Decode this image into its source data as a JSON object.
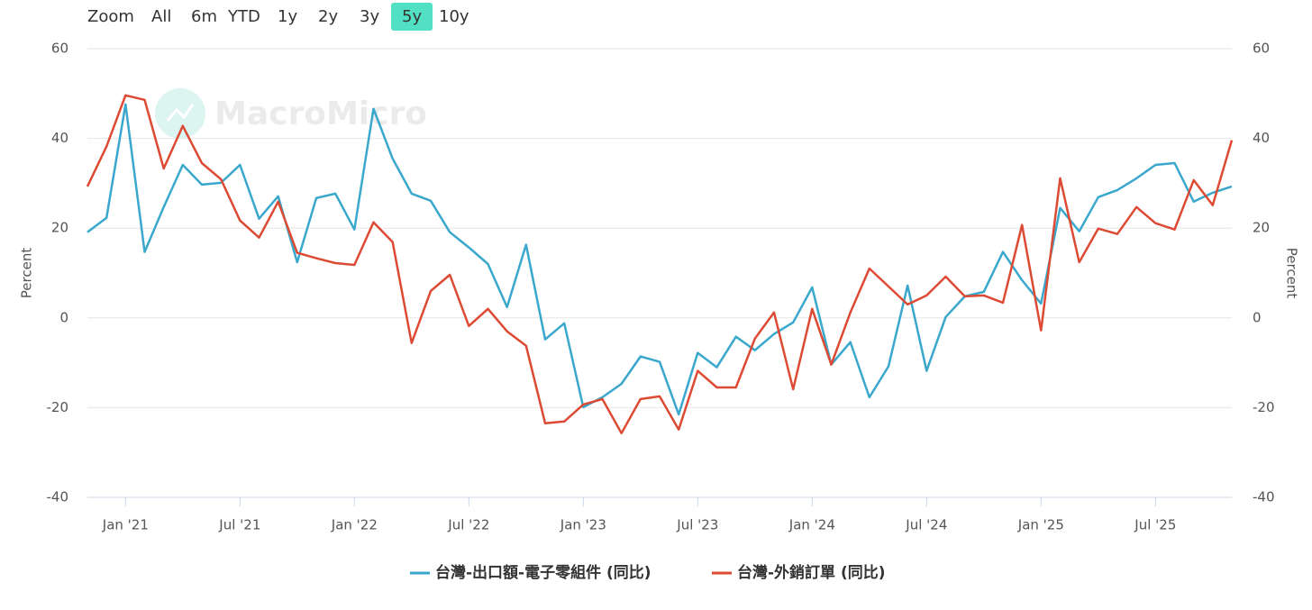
{
  "chart_data": {
    "type": "line",
    "range_selector": {
      "label": "Zoom",
      "buttons": [
        "All",
        "6m",
        "YTD",
        "1y",
        "2y",
        "3y",
        "5y",
        "10y"
      ],
      "selected": 6
    },
    "watermark": "MacroMicro",
    "ylabel": "Percent",
    "y2label": "Percent",
    "categories": [
      null,
      null,
      "Jan '21",
      null,
      null,
      null,
      null,
      null,
      "Jul '21",
      null,
      null,
      null,
      null,
      null,
      "Jan '22",
      null,
      null,
      null,
      null,
      null,
      "Jul '22",
      null,
      null,
      null,
      null,
      null,
      "Jan '23",
      null,
      null,
      null,
      null,
      null,
      "Jul '23",
      null,
      null,
      null,
      null,
      null,
      "Jan '24",
      null,
      null,
      null,
      null,
      null,
      "Jul '24",
      null,
      null,
      null,
      null,
      null,
      "Jan '25",
      null,
      null,
      null,
      null,
      null,
      "Jul '25",
      null,
      null,
      null,
      null
    ],
    "series": [
      {
        "name": "台灣-出口額-電子零組件 (同比)",
        "color": "#3aa7cc",
        "values": [
          19.1,
          22.3,
          47.6,
          14.7,
          24.7,
          34.1,
          29.7,
          30.1,
          34.1,
          22.1,
          27.1,
          12.4,
          26.7,
          27.7,
          19.7,
          46.6,
          35.5,
          27.7,
          26.1,
          19.1,
          15.7,
          12.0,
          2.4,
          16.3,
          -4.8,
          -1.2,
          -19.9,
          -17.7,
          -14.7,
          -8.6,
          -9.8,
          -21.5,
          -7.8,
          -11.0,
          -4.2,
          -7.2,
          -3.6,
          -1.0,
          6.8,
          -10.4,
          -5.4,
          -17.7,
          -10.8,
          7.2,
          -11.8,
          0.2,
          4.8,
          5.8,
          14.7,
          8.4,
          3.2,
          24.5,
          19.3,
          26.9,
          28.5,
          31.1,
          34.1,
          34.5,
          25.9,
          27.9,
          29.3
        ]
      },
      {
        "name": "台灣-外銷訂單 (同比)",
        "color": "#dd4a34",
        "values": [
          29.3,
          38.2,
          49.6,
          48.6,
          33.3,
          42.8,
          34.5,
          30.9,
          21.7,
          17.9,
          25.9,
          14.5,
          13.3,
          12.2,
          11.8,
          21.3,
          16.9,
          -5.6,
          6.0,
          9.6,
          -1.8,
          2.0,
          -3.0,
          -6.2,
          -23.5,
          -23.1,
          -19.3,
          -18.1,
          -25.7,
          -18.1,
          -17.5,
          -24.9,
          -11.8,
          -15.5,
          -15.5,
          -4.6,
          1.2,
          -15.9,
          2.0,
          -10.4,
          1.2,
          11.0,
          7.0,
          3.0,
          5.0,
          9.2,
          4.8,
          5.0,
          3.4,
          20.7,
          -2.8,
          31.1,
          12.4,
          19.9,
          18.7,
          24.7,
          21.1,
          19.7,
          30.7,
          25.1,
          39.6
        ]
      }
    ],
    "ylim": [
      -40,
      60
    ],
    "yticks": [
      -40,
      -20,
      0,
      20,
      40,
      60
    ],
    "y2lim": [
      -40,
      60
    ],
    "y2ticks": [
      -40,
      -20,
      0,
      20,
      40,
      60
    ],
    "grid": true,
    "legend": "bottom"
  }
}
